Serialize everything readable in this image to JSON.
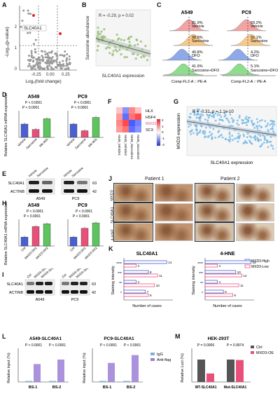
{
  "panels": {
    "A": {
      "label": "A",
      "ylabel": "-Log₁₀(p-value)",
      "xlabel": "Log₂(fold change)",
      "gene": "SLC40A1"
    },
    "B": {
      "label": "B",
      "ylabel": "Sarcosine abundance",
      "xlabel": "SLC40A1 expression",
      "stat": "R = -0.29, p = 0.02"
    },
    "C": {
      "label": "C",
      "left_title": "A549",
      "right_title": "PC9",
      "left_rows": [
        {
          "pct": "81.9%",
          "name": "Vehicle"
        },
        {
          "pct": "98.9%",
          "name": "Sarcosine"
        },
        {
          "pct": "40.8%",
          "name": "DFO"
        },
        {
          "pct": "41.9%",
          "name": "Sarcosine+DFO"
        }
      ],
      "right_rows": [
        {
          "pct": "69.2%",
          "name": "Vehicle"
        },
        {
          "pct": "92.1%",
          "name": "Sarcosine"
        },
        {
          "pct": "4.2%",
          "name": "DFO"
        },
        {
          "pct": "5.1%",
          "name": "Sarcosine+DFO"
        }
      ],
      "left_xlabel": "Comp-FL2-A :: PE-A",
      "right_xlabel": "Comp-FL2-A :: PE-A"
    },
    "D": {
      "label": "D",
      "left_title": "A549",
      "right_title": "PC9",
      "ylabel": "Relative SLC40A1 mRNA expression",
      "p1": "P < 0.0001",
      "p2": "P < 0.0001",
      "p3": "P < 0.0001",
      "p4": "P < 0.0001"
    },
    "E": {
      "label": "E",
      "row1": "SLC40A1",
      "row2": "ACTINB",
      "kd1": "63",
      "kd2": "42",
      "cell1": "A549",
      "cell2": "PC9"
    },
    "F": {
      "label": "F",
      "genes": [
        "HLX",
        "HSF4",
        "MXD3",
        "SCX"
      ],
      "cols": [
        "A549_Vehicle1",
        "A549_Vehicle2",
        "A549_Sarcosine1",
        "A549_Sarcosine2"
      ]
    },
    "G": {
      "label": "G",
      "ylabel": "MXD3 expression",
      "xlabel": "SLC40A1 expression",
      "stat": "R = -0.31, p = 1.1e-10"
    },
    "H": {
      "label": "H",
      "left_title": "A549",
      "right_title": "PC9",
      "ylabel": "Relative SLC40A1 mRNA expression",
      "p1": "P < 0.0001",
      "p2": "P < 0.0001",
      "p3": "P < 0.0001",
      "p4": "P < 0.0001"
    },
    "I": {
      "label": "I",
      "row1": "SLC40A1",
      "row2": "ACTINB",
      "kd1": "63",
      "kd2": "42",
      "cell1": "A549",
      "cell2": "PC9"
    },
    "J": {
      "label": "J",
      "patient1": "Patient 1",
      "patient2": "Patient 2",
      "rows": [
        "MXD3",
        "SLC40A1",
        "4-HNE"
      ]
    },
    "K": {
      "label": "K",
      "left_title": "SLC40A1",
      "right_title": "4-HNE",
      "xlabel": "Number of cases",
      "ylabel": "Staining intensity",
      "legend1": "MXD3-High",
      "legend2": "MXD3-Low"
    },
    "L": {
      "label": "L",
      "left_title": "A549-SLC40A1",
      "right_title": "PC9-SLC40A1",
      "ylabel": "Relative input (%)",
      "p1": "P < 0.0001",
      "p2": "P < 0.0001",
      "p3": "P < 0.0001",
      "p4": "P < 0.0001",
      "legend1": "IgG",
      "legend2": "Anti-flag",
      "cat1": "BS-1",
      "cat2": "BS-2"
    },
    "M": {
      "label": "M",
      "title": "HEK-293T",
      "ylabel": "Relative Luci (%)",
      "p1": "P = 0.0006",
      "p2": "P = 0.9974",
      "legend1": "Ctrl",
      "legend2": "MXD3-OE",
      "cat1": "WT-SLC40A1",
      "cat2": "Mut-SLC40A1"
    }
  },
  "chart_data": [
    {
      "panel": "D-A549",
      "type": "bar",
      "categories": [
        "Vehicle",
        "Sarcosine",
        "MK-801"
      ],
      "values": [
        1.0,
        0.6,
        1.4
      ],
      "ylim": [
        0,
        2.0
      ]
    },
    {
      "panel": "D-PC9",
      "type": "bar",
      "categories": [
        "Vehicle",
        "Sarcosine",
        "MK-801"
      ],
      "values": [
        1.0,
        0.5,
        1.5
      ],
      "ylim": [
        0,
        2.0
      ]
    },
    {
      "panel": "H-A549",
      "type": "bar",
      "categories": [
        "Ctrl",
        "MXD3-SH1",
        "MXD3-SH2"
      ],
      "values": [
        1.0,
        2.2,
        2.5
      ],
      "ylim": [
        0,
        3
      ]
    },
    {
      "panel": "H-PC9",
      "type": "bar",
      "categories": [
        "Ctrl",
        "MXD3-SH1",
        "MXD3-SH2"
      ],
      "values": [
        1.0,
        2.0,
        2.6
      ],
      "ylim": [
        0,
        3
      ]
    },
    {
      "panel": "K-SLC40A1",
      "type": "bar",
      "categories": [
        "-",
        "+",
        "++",
        "+++"
      ],
      "series": [
        {
          "name": "MXD3-High",
          "values": [
            14,
            8,
            4,
            7
          ]
        },
        {
          "name": "MXD3-Low",
          "values": [
            4,
            11,
            10,
            8
          ]
        }
      ]
    },
    {
      "panel": "K-4HNE",
      "type": "bar",
      "categories": [
        "-",
        "+",
        "++",
        "+++"
      ],
      "series": [
        {
          "name": "MXD3-High",
          "values": [
            15,
            10,
            4,
            6
          ]
        },
        {
          "name": "MXD3-Low",
          "values": [
            4,
            12,
            11,
            9
          ]
        }
      ]
    },
    {
      "panel": "L-A549",
      "type": "bar",
      "categories": [
        "BS-1",
        "BS-2"
      ],
      "series": [
        {
          "name": "IgG",
          "values": [
            0.05,
            0.05
          ]
        },
        {
          "name": "Anti-flag",
          "values": [
            0.8,
            1.0
          ]
        }
      ],
      "ylim": [
        0,
        1.5
      ]
    },
    {
      "panel": "L-PC9",
      "type": "bar",
      "categories": [
        "BS-1",
        "BS-2"
      ],
      "series": [
        {
          "name": "IgG",
          "values": [
            0.05,
            0.05
          ]
        },
        {
          "name": "Anti-flag",
          "values": [
            0.85,
            1.2
          ]
        }
      ],
      "ylim": [
        0,
        1.5
      ]
    },
    {
      "panel": "M",
      "type": "bar",
      "categories": [
        "WT-SLC40A1",
        "Mut-SLC40A1"
      ],
      "series": [
        {
          "name": "Ctrl",
          "values": [
            100,
            100
          ]
        },
        {
          "name": "MXD3-OE",
          "values": [
            38,
            98
          ]
        }
      ],
      "ylim": [
        0,
        150
      ]
    }
  ],
  "colors": {
    "blue": "#4a5fd0",
    "red": "#e8507a",
    "green": "#5ec45e",
    "purple": "#9b7fd6",
    "lightblue": "#7fb0e0",
    "grey": "#555555"
  }
}
